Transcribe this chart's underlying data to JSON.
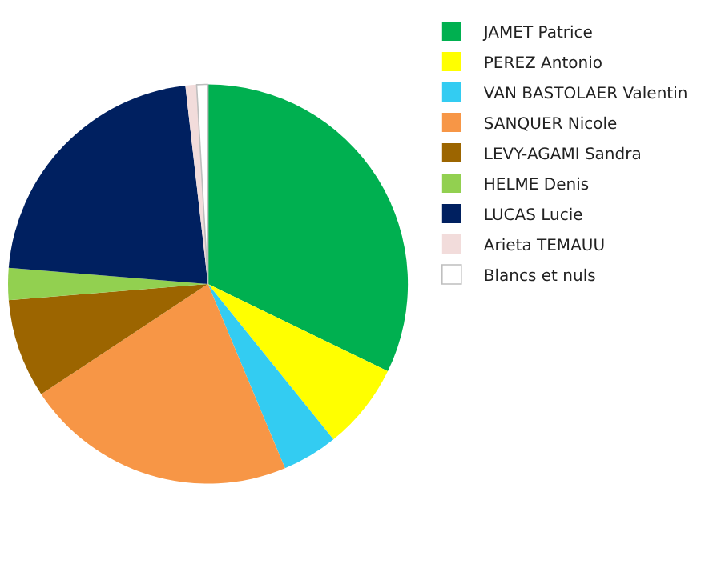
{
  "chart_data": {
    "type": "pie",
    "categories": [
      "JAMET Patrice",
      "PEREZ Antonio",
      "VAN BASTOLAER Valentin",
      "SANQUER Nicole",
      "LEVY-AGAMI Sandra",
      "HELME Denis",
      "LUCAS Lucie",
      "Arieta TEMAUU",
      "Blancs et nuls"
    ],
    "values": [
      32.2,
      7,
      4.5,
      22,
      8,
      2.6,
      21.9,
      0.9,
      0.9
    ],
    "colors": [
      "#00b050",
      "#ffff00",
      "#33ccf2",
      "#f79646",
      "#9c6500",
      "#92d050",
      "#002060",
      "#f2dcdb",
      "#ffffff"
    ],
    "legend": "right"
  }
}
